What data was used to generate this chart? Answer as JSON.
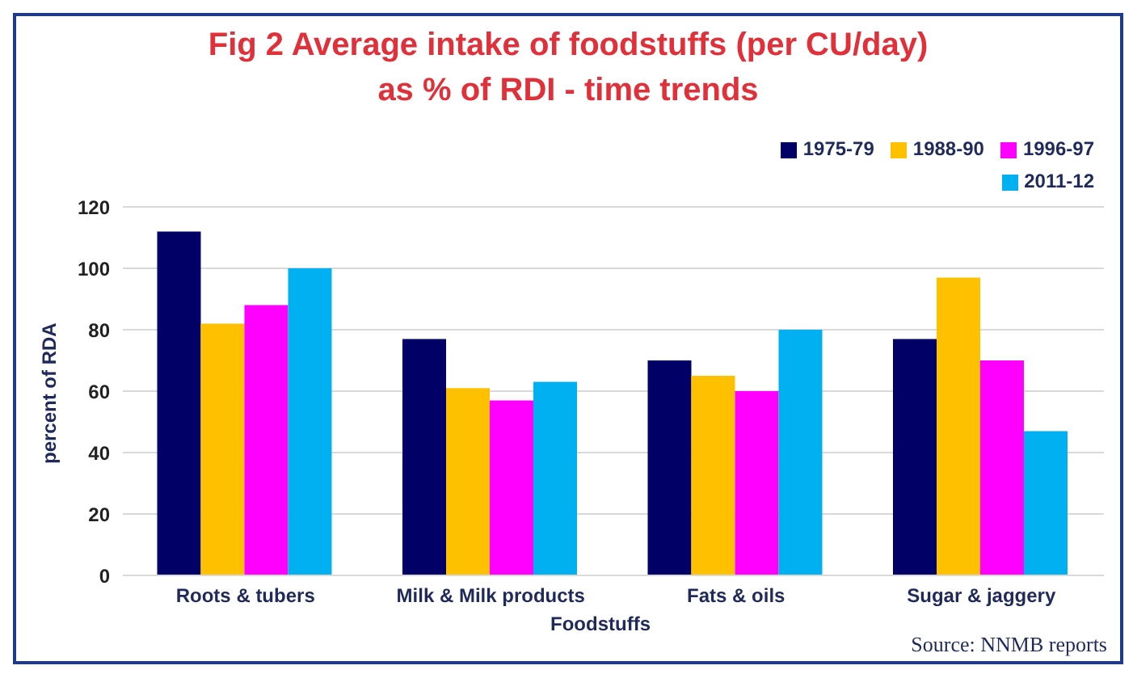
{
  "chart_data": {
    "type": "bar",
    "title": "Fig 2 Average intake of foodstuffs (per CU/day)\nas % of RDI - time trends",
    "xlabel": "Foodstuffs",
    "ylabel": "percent of RDA",
    "annotations": [
      "Source: NNMB reports"
    ],
    "categories": [
      "Roots & tubers",
      "Milk & Milk products",
      "Fats & oils",
      "Sugar & jaggery"
    ],
    "series": [
      {
        "name": "1975-79",
        "color": "#000066",
        "values": [
          112,
          77,
          70,
          77
        ]
      },
      {
        "name": "1988-90",
        "color": "#ffc000",
        "values": [
          82,
          61,
          65,
          97
        ]
      },
      {
        "name": "1996-97",
        "color": "#ff00ff",
        "values": [
          88,
          57,
          60,
          70
        ]
      },
      {
        "name": "2011-12",
        "color": "#00b0f0",
        "values": [
          100,
          63,
          80,
          47
        ]
      }
    ],
    "ylim": [
      0,
      120
    ],
    "yticks": [
      0,
      20,
      40,
      60,
      80,
      100,
      120
    ],
    "grid": "y",
    "legend": "top right"
  }
}
